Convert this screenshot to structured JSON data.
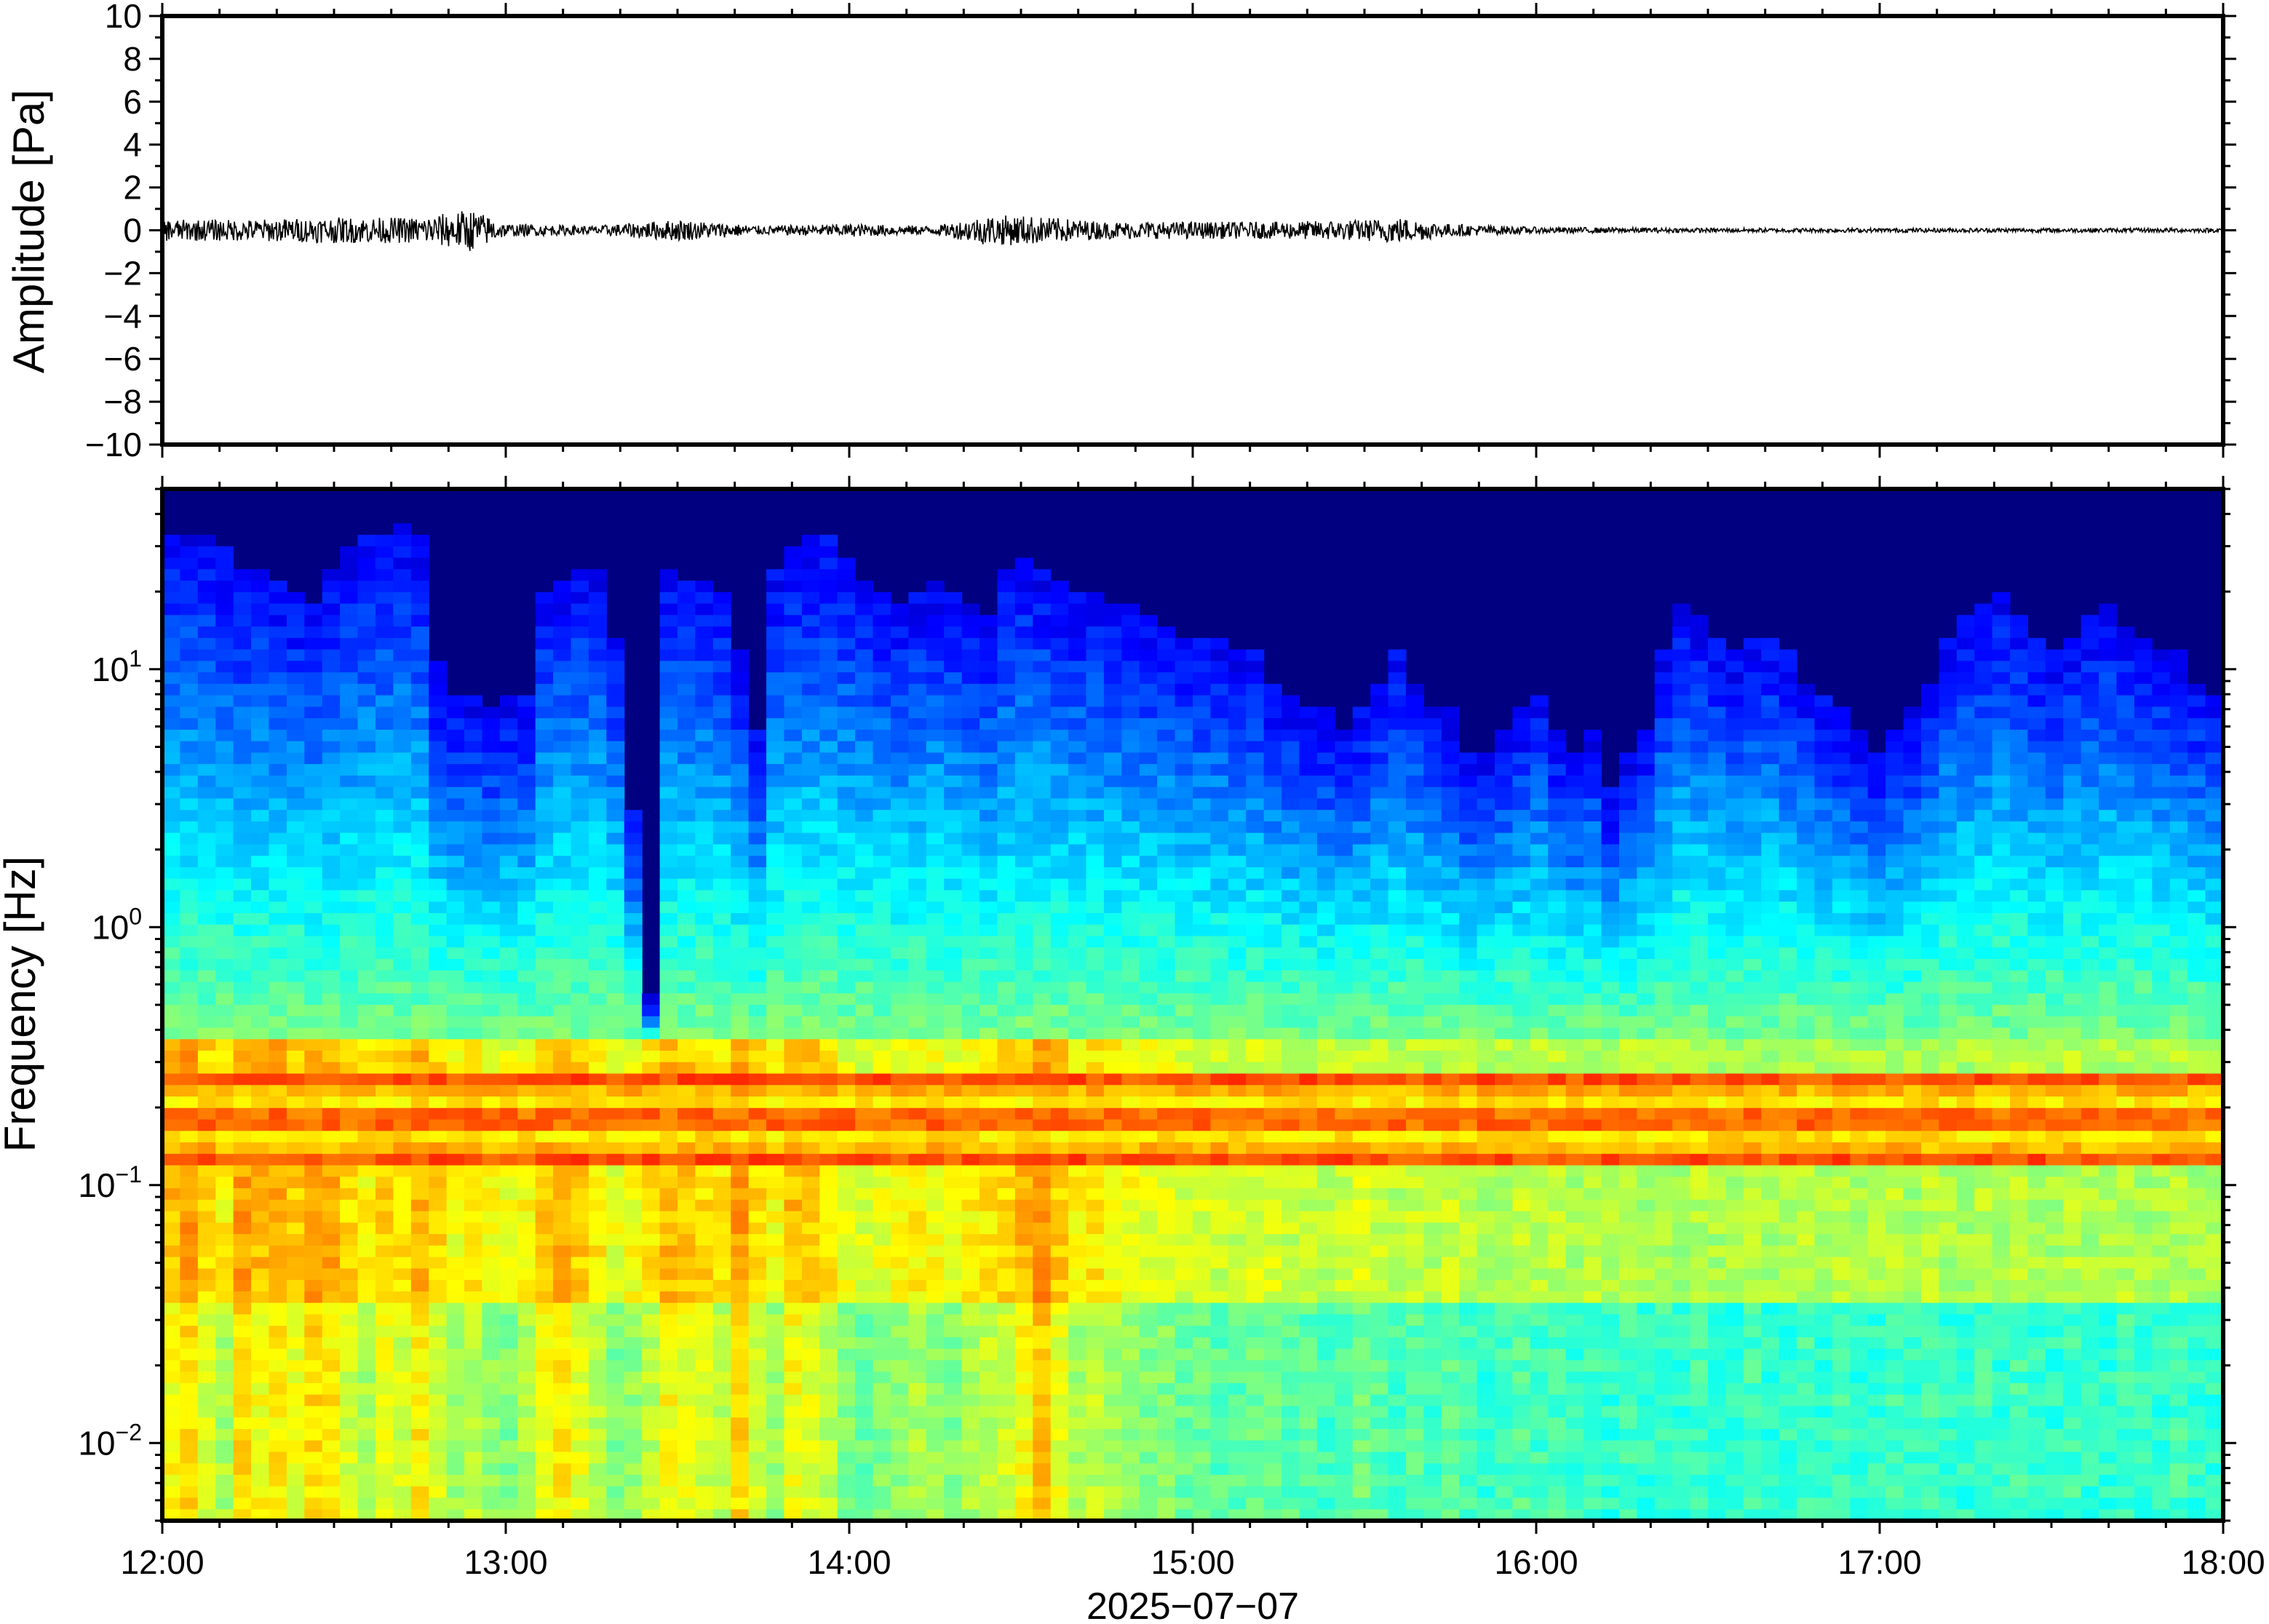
{
  "chart_data": [
    {
      "type": "line",
      "title": "",
      "ylabel": "Amplitude [Pa]",
      "xlabel": "",
      "ylim": [
        -10,
        10
      ],
      "yticks": [
        10,
        8,
        6,
        4,
        2,
        0,
        -2,
        -4,
        -6,
        -8,
        -10
      ],
      "ytick_labels": [
        "10",
        "8",
        "6",
        "4",
        "2",
        "0",
        "−2",
        "−4",
        "−6",
        "−8",
        "−10"
      ],
      "xlim": [
        "12:00",
        "18:00"
      ],
      "grid": false,
      "series": [
        {
          "color": "#000000",
          "x_hours": [
            12.0,
            12.25,
            12.5,
            12.75,
            12.9,
            13.0,
            13.25,
            13.5,
            13.75,
            14.0,
            14.25,
            14.4,
            14.5,
            14.75,
            15.0,
            15.25,
            15.5,
            15.6,
            15.75,
            16.0,
            16.5,
            17.0,
            17.5,
            18.0
          ],
          "envelope_pa": [
            0.5,
            0.5,
            0.6,
            0.6,
            1.0,
            0.3,
            0.2,
            0.5,
            0.2,
            0.3,
            0.2,
            0.7,
            0.7,
            0.4,
            0.4,
            0.4,
            0.5,
            0.6,
            0.3,
            0.15,
            0.1,
            0.1,
            0.1,
            0.1
          ]
        }
      ]
    },
    {
      "type": "heatmap",
      "title": "",
      "ylabel": "Frequency [Hz]",
      "xlabel": "2025−07−07",
      "yscale": "log",
      "ylim": [
        0.005,
        50
      ],
      "yticks": [
        0.01,
        0.1,
        1,
        10
      ],
      "ytick_labels": [
        {
          "base": "10",
          "exp": "−2"
        },
        {
          "base": "10",
          "exp": "−1"
        },
        {
          "base": "10",
          "exp": "0"
        },
        {
          "base": "10",
          "exp": "1"
        }
      ],
      "xticks": [
        "12:00",
        "13:00",
        "14:00",
        "15:00",
        "16:00",
        "17:00",
        "18:00"
      ],
      "colormap": "jet",
      "colors": {
        "background": "#000080",
        "low": "#0000ff",
        "mid": "#7fffaa",
        "high": "#ff6600"
      },
      "column_minutes": 5,
      "top_cutoff_hz": [
        30,
        30,
        28,
        25,
        22,
        22,
        20,
        18,
        16,
        22,
        25,
        28,
        30,
        32,
        28,
        9,
        7,
        7,
        6,
        7,
        7,
        18,
        20,
        22,
        22,
        12,
        2.5,
        0.5,
        22,
        20,
        20,
        18,
        10,
        5,
        22,
        25,
        28,
        30,
        24,
        20,
        18,
        16,
        18,
        20,
        18,
        15,
        14,
        22,
        24,
        22,
        20,
        18,
        18,
        16,
        15,
        14,
        13,
        12,
        12,
        11,
        10,
        10,
        8,
        7,
        6,
        6,
        5,
        6,
        8,
        10,
        8,
        6,
        6,
        4,
        4,
        5,
        6,
        7,
        5,
        4,
        5,
        3,
        4,
        5,
        10,
        16,
        14,
        12,
        10,
        12,
        12,
        10,
        8,
        7,
        6,
        5,
        4,
        5,
        6,
        8,
        12,
        14,
        16,
        18,
        14,
        12,
        10,
        12,
        14,
        15,
        13,
        12,
        10,
        10,
        8,
        7
      ],
      "microseism_band_hz": [
        0.12,
        0.28
      ],
      "low_freq_energy": [
        0.8,
        0.9,
        0.7,
        0.6,
        0.9,
        0.8,
        0.85,
        0.75,
        0.9,
        0.85,
        0.7,
        0.6,
        0.75,
        0.7,
        0.85,
        0.7,
        0.55,
        0.65,
        0.55,
        0.5,
        0.6,
        0.8,
        0.85,
        0.75,
        0.65,
        0.5,
        0.55,
        0.65,
        0.8,
        0.75,
        0.7,
        0.65,
        0.9,
        0.7,
        0.55,
        0.8,
        0.75,
        0.65,
        0.5,
        0.45,
        0.5,
        0.55,
        0.6,
        0.55,
        0.5,
        0.6,
        0.65,
        0.7,
        0.8,
        0.95,
        0.75,
        0.6,
        0.65,
        0.6,
        0.55,
        0.5,
        0.5,
        0.45,
        0.45,
        0.4,
        0.4,
        0.45,
        0.45,
        0.4,
        0.4,
        0.35,
        0.4,
        0.45,
        0.4,
        0.35,
        0.4,
        0.35,
        0.4,
        0.35,
        0.3,
        0.35,
        0.4,
        0.35,
        0.35,
        0.3,
        0.35,
        0.3,
        0.35,
        0.3,
        0.35,
        0.3,
        0.35,
        0.3,
        0.3,
        0.35,
        0.3,
        0.3,
        0.35,
        0.3,
        0.35,
        0.3,
        0.3,
        0.35,
        0.3,
        0.35,
        0.3,
        0.3,
        0.35,
        0.3,
        0.35,
        0.3,
        0.3,
        0.35,
        0.3,
        0.3,
        0.35,
        0.3,
        0.3,
        0.35,
        0.3,
        0.3
      ]
    }
  ]
}
